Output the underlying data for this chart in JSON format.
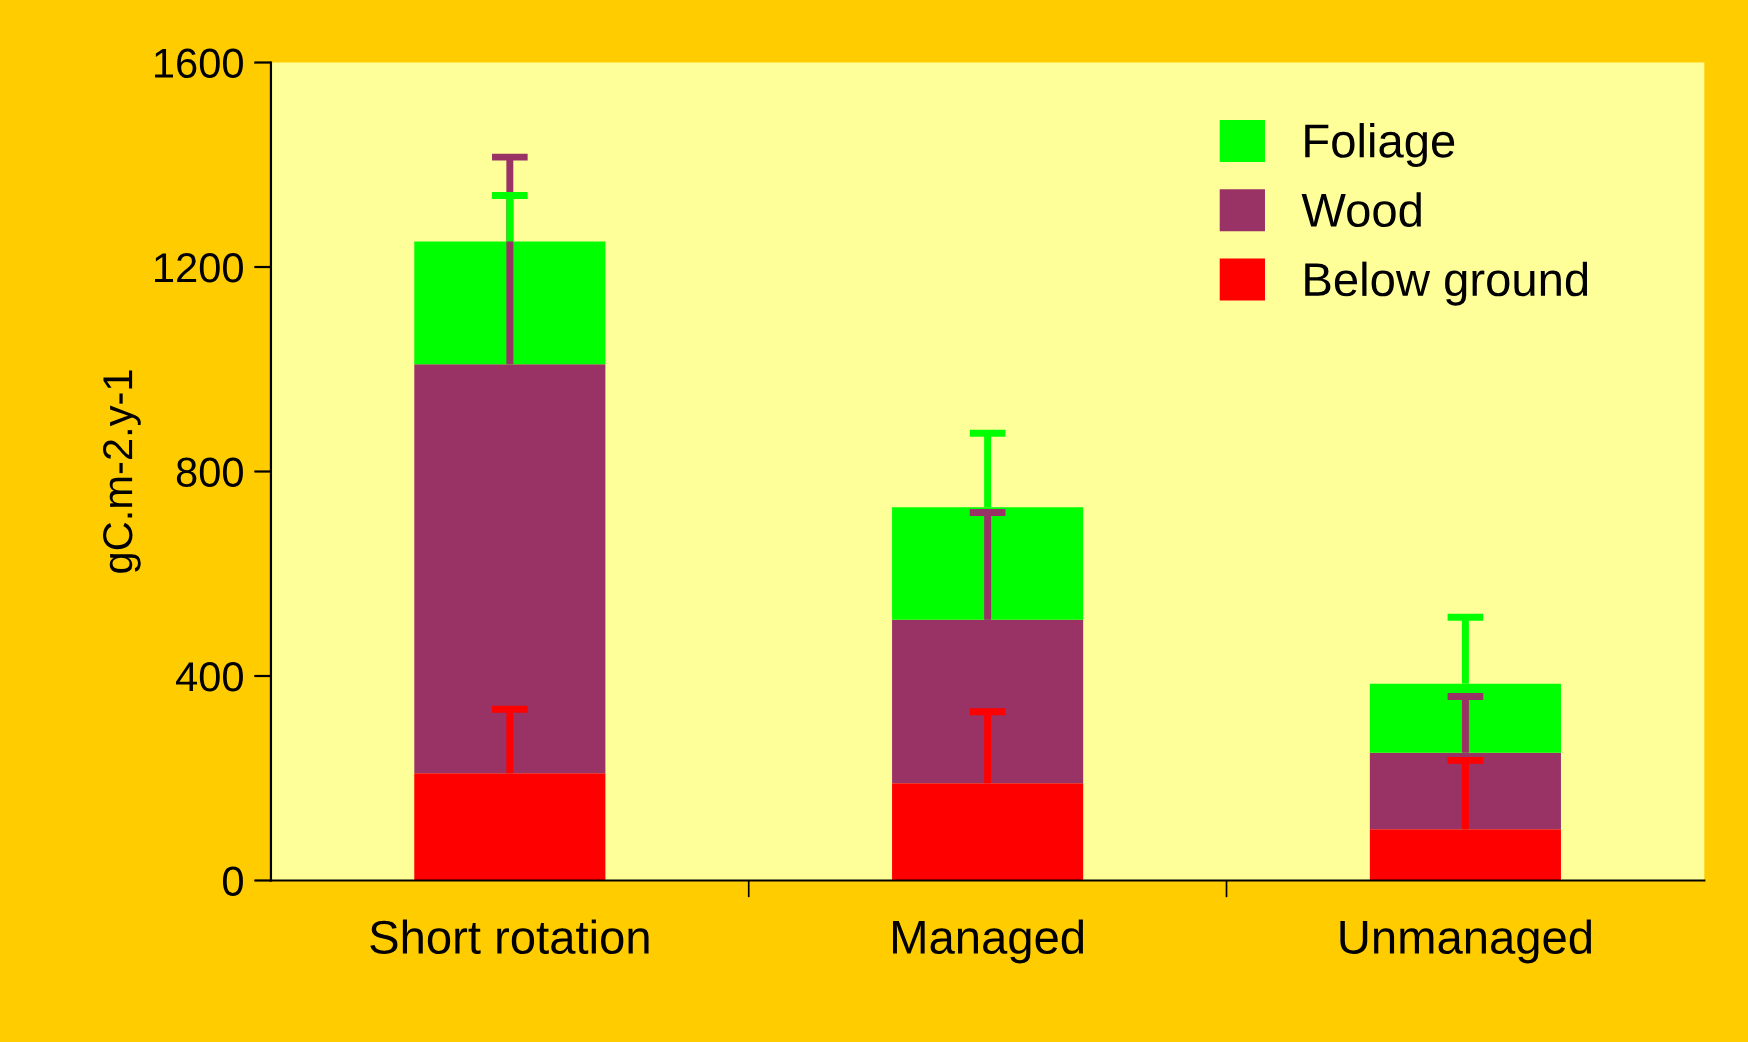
{
  "chart_data": {
    "type": "bar",
    "stacked": true,
    "ylabel": "gC.m-2.y-1",
    "categories": [
      "Short rotation",
      "Managed",
      "Unmanaged"
    ],
    "series": [
      {
        "name": "Below ground",
        "color": "#ff0000",
        "values": [
          210,
          190,
          100
        ],
        "errors": [
          [
            210,
            335
          ],
          [
            190,
            330
          ],
          [
            100,
            235
          ]
        ]
      },
      {
        "name": "Wood",
        "color": "#993366",
        "values": [
          800,
          320,
          150
        ],
        "errors": [
          [
            1010,
            1415
          ],
          [
            510,
            720
          ],
          [
            250,
            360
          ]
        ]
      },
      {
        "name": "Foliage",
        "color": "#00ff00",
        "values": [
          240,
          220,
          135
        ],
        "errors": [
          [
            1250,
            1340
          ],
          [
            730,
            875
          ],
          [
            385,
            515
          ]
        ]
      }
    ],
    "ylim": [
      0,
      1600
    ],
    "yticks": [
      0,
      400,
      800,
      1200,
      1600
    ],
    "grid": false,
    "legend": "top right"
  }
}
